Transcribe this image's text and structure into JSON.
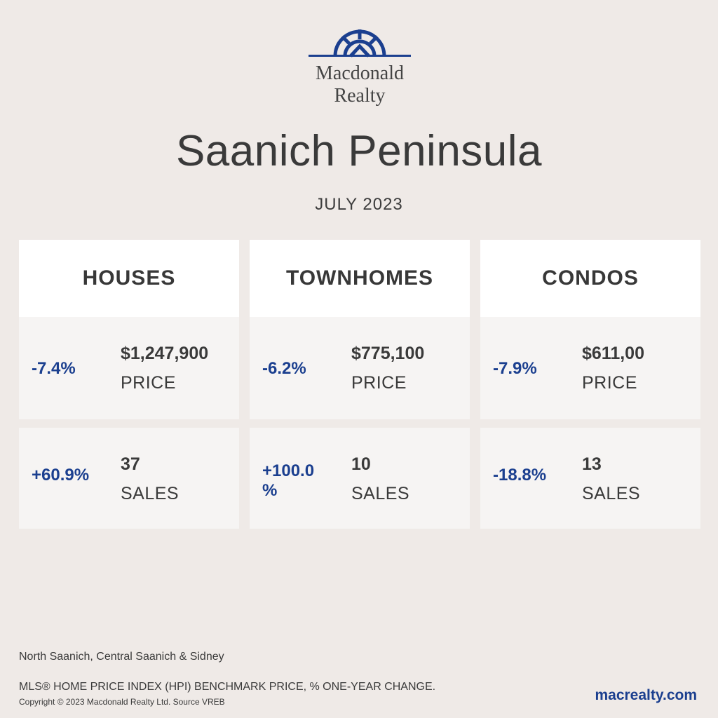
{
  "brand": {
    "name_line1": "Macdonald",
    "name_line2": "Realty",
    "accent": "#1b3f8f",
    "logo_icon": "compass-arch-logo"
  },
  "title": "Saanich Peninsula",
  "subtitle": "JULY 2023",
  "columns": [
    {
      "header": "HOUSES",
      "price": {
        "change": "-7.4%",
        "value": "$1,247,900",
        "label": "PRICE"
      },
      "sales": {
        "change": "+60.9%",
        "value": "37",
        "label": "SALES"
      }
    },
    {
      "header": "TOWNHOMES",
      "price": {
        "change": "-6.2%",
        "value": "$775,100",
        "label": "PRICE"
      },
      "sales": {
        "change": "+100.0 %",
        "value": "10",
        "label": "SALES"
      }
    },
    {
      "header": "CONDOS",
      "price": {
        "change": "-7.9%",
        "value": "$611,00",
        "label": "PRICE"
      },
      "sales": {
        "change": "-18.8%",
        "value": "13",
        "label": "SALES"
      }
    }
  ],
  "footer": {
    "region": "North Saanich, Central Saanich & Sidney",
    "note": "MLS® HOME PRICE INDEX (HPI) BENCHMARK PRICE, % ONE-YEAR CHANGE.",
    "copyright": "Copyright © 2023 Macdonald Realty Ltd. Source VREB",
    "website": "macrealty.com"
  }
}
